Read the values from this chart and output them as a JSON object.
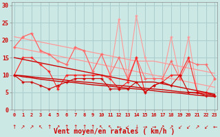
{
  "background_color": "#cce8e4",
  "grid_color": "#aacccc",
  "xlabel": "Vent moyen/en rafales ( km/h )",
  "x_ticks": [
    0,
    1,
    2,
    3,
    4,
    5,
    6,
    7,
    8,
    9,
    10,
    11,
    12,
    13,
    14,
    15,
    16,
    17,
    18,
    19,
    20,
    21,
    22,
    23
  ],
  "ylim": [
    0,
    31
  ],
  "yticks": [
    0,
    5,
    10,
    15,
    20,
    25,
    30
  ],
  "series": {
    "light_zigzag1": [
      18,
      21,
      22,
      17,
      16,
      14,
      13,
      18,
      17,
      11,
      16,
      10,
      26,
      9,
      27,
      15,
      9,
      9,
      21,
      9,
      21,
      5,
      5,
      9
    ],
    "light_zigzag2": [
      18,
      21,
      22,
      17,
      16,
      14,
      13,
      18,
      17,
      11,
      16,
      10,
      15,
      9,
      15,
      9,
      9,
      9,
      14,
      9,
      14,
      13,
      13,
      9
    ],
    "light_diag_upper": [
      21,
      20.5,
      20,
      19.5,
      19,
      18.5,
      18,
      17.5,
      17,
      16.5,
      16,
      15.5,
      15,
      14.5,
      14,
      14,
      14,
      13.5,
      13,
      12.5,
      12,
      11.5,
      11,
      10.5
    ],
    "light_diag_lower": [
      18,
      17.5,
      17,
      16.5,
      16,
      15.5,
      15,
      14.5,
      14,
      13.5,
      13,
      12.5,
      12,
      11.5,
      11,
      10.5,
      10,
      9.5,
      9,
      8.5,
      8,
      7.5,
      7,
      6.5
    ],
    "mid_zigzag1": [
      10,
      15,
      15,
      13,
      11,
      6,
      10,
      10,
      10,
      10,
      10,
      9,
      6,
      8,
      15,
      5,
      7,
      8,
      10,
      10,
      15,
      5,
      5,
      4
    ],
    "mid_zigzag2": [
      10,
      8,
      8,
      7,
      6,
      7,
      8,
      9,
      9,
      9,
      9,
      6,
      6,
      6,
      8,
      5,
      7,
      8,
      7,
      10,
      5,
      5,
      4,
      4
    ],
    "dark_diag1": [
      15,
      14.5,
      14,
      13.5,
      13,
      12.5,
      12,
      11.5,
      11,
      10.5,
      10,
      9.5,
      9,
      8.5,
      8,
      8,
      8,
      7.5,
      7,
      6.5,
      6,
      5.5,
      5,
      4.5
    ],
    "dark_diag2": [
      10,
      9.5,
      9.2,
      8.8,
      8.5,
      8.2,
      8,
      7.8,
      7.5,
      7.2,
      7,
      6.8,
      6.5,
      6.2,
      6,
      5.8,
      5.5,
      5.2,
      5,
      4.8,
      4.5,
      4.2,
      4,
      3.8
    ],
    "dark_diag3": [
      10,
      9.8,
      9.5,
      9.2,
      9,
      8.8,
      8.5,
      8.2,
      8,
      7.8,
      7.5,
      7.2,
      7,
      6.8,
      6.5,
      6.2,
      6,
      5.8,
      5.5,
      5.2,
      5,
      4.8,
      4.5,
      4.2
    ]
  },
  "colors": {
    "light_pink": "#ff9999",
    "medium_pink": "#ff6666",
    "red": "#ff2222",
    "dark_red": "#cc0000",
    "tick_color": "#cc0000",
    "spine_color": "#888888"
  },
  "wind_arrows": [
    "↑",
    "↗",
    "↗",
    "↖",
    "↑",
    "↗",
    "↑",
    "↑",
    "↑",
    "↑",
    "↖",
    "↖",
    "←",
    "↙",
    "↓",
    "→",
    "→",
    "↗",
    "↗",
    "↙",
    "↙",
    "↗",
    "↙",
    "←"
  ]
}
